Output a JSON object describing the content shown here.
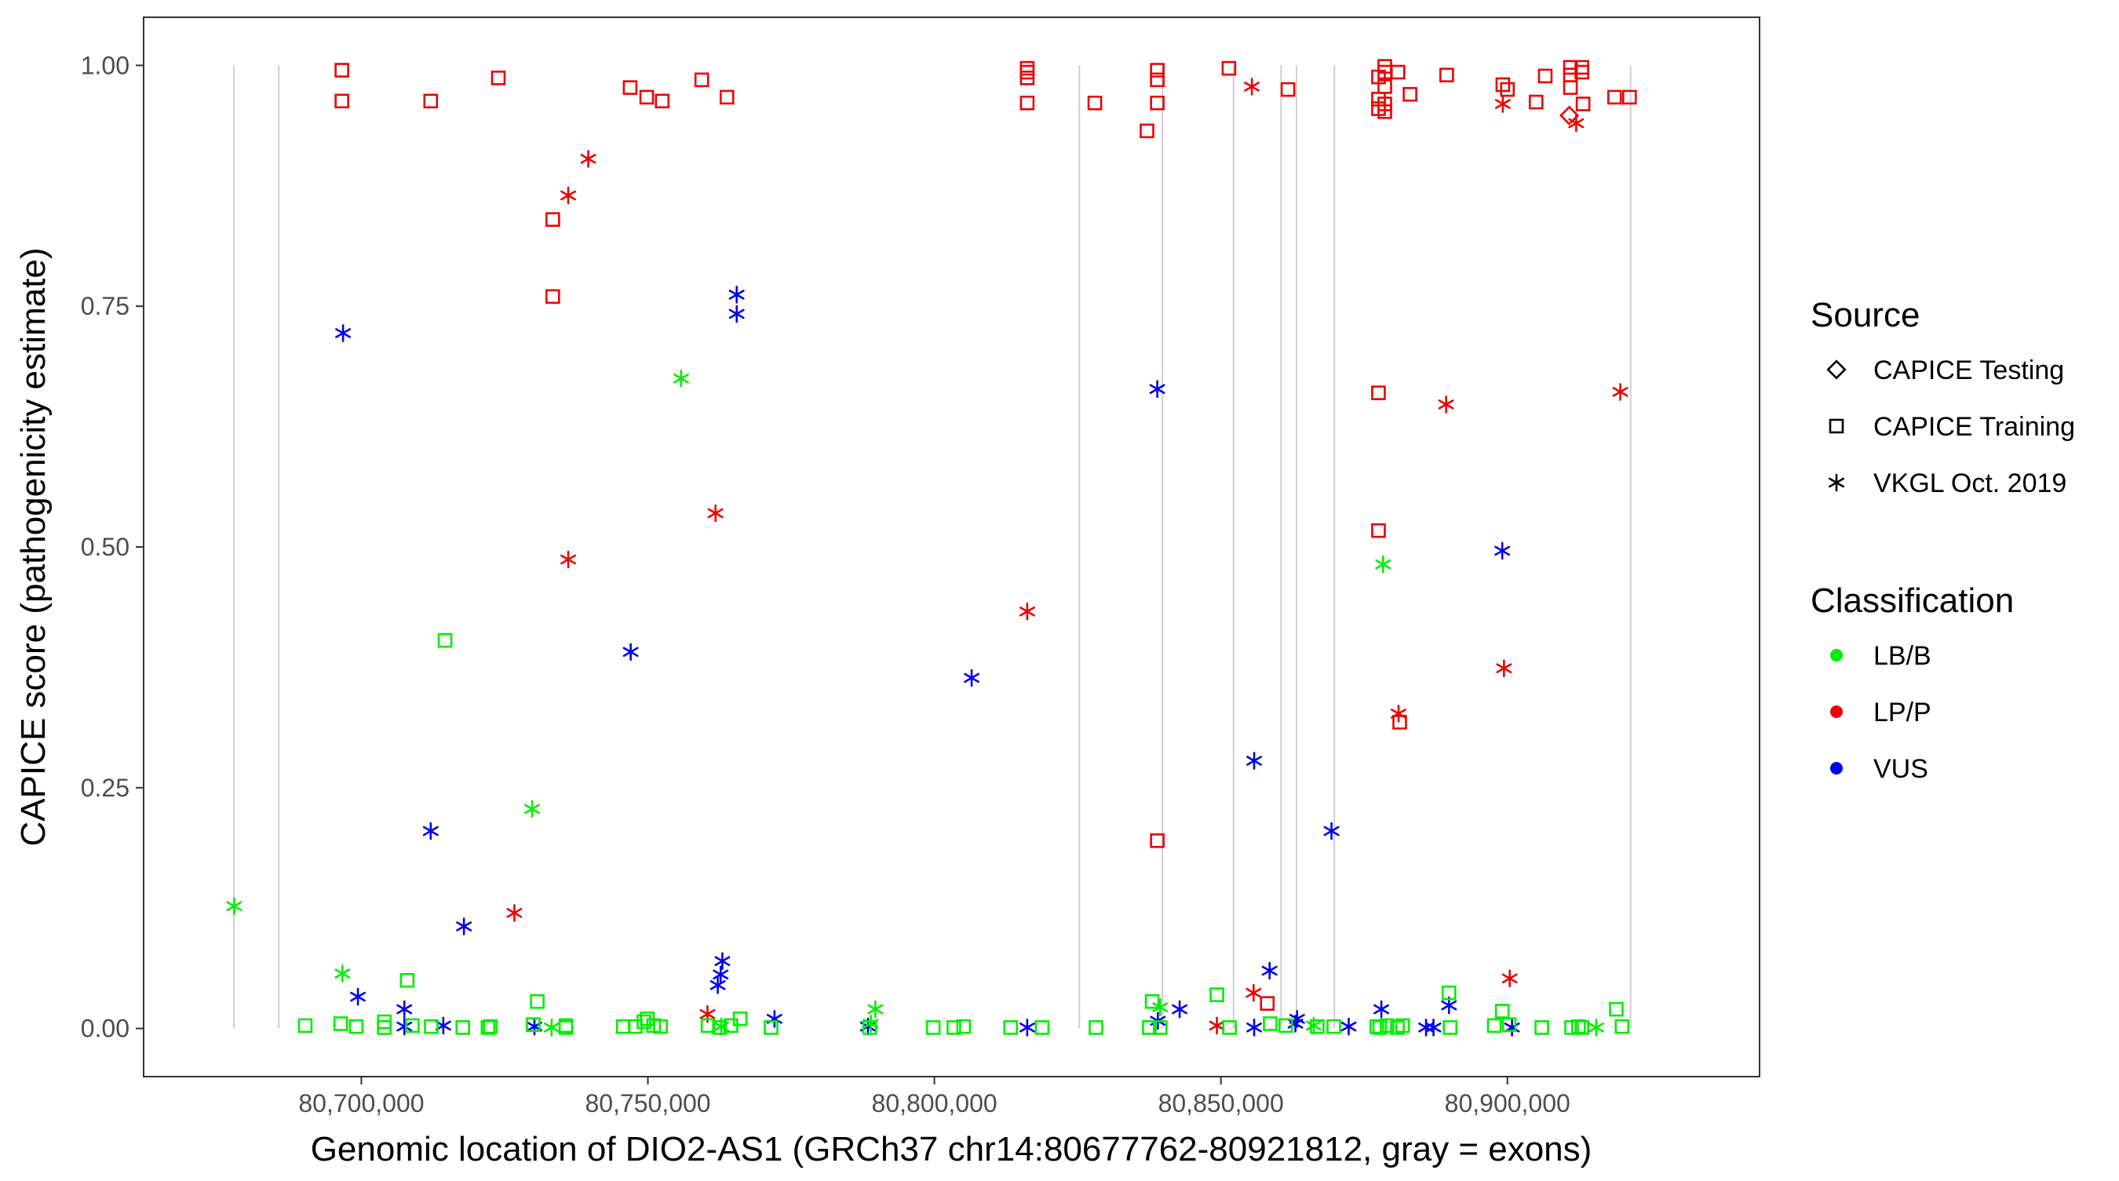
{
  "chart_data": {
    "type": "scatter",
    "xlabel": "Genomic location of DIO2-AS1 (GRCh37 chr14:80677762-80921812, gray = exons)",
    "ylabel": "CAPICE score (pathogenicity estimate)",
    "xlim": [
      80662000,
      80944000
    ],
    "ylim": [
      -0.05,
      1.05
    ],
    "x_ticks": [
      80700000,
      80750000,
      80800000,
      80850000,
      80900000
    ],
    "x_tick_labels": [
      "80,700,000",
      "80,750,000",
      "80,800,000",
      "80,850,000",
      "80,900,000"
    ],
    "y_ticks": [
      0,
      0.25,
      0.5,
      0.75,
      1
    ],
    "y_tick_labels": [
      "0.00",
      "0.25",
      "0.50",
      "0.75",
      "1.00"
    ],
    "grid": false,
    "exons": [
      80677762,
      80685600,
      80825300,
      80839800,
      80852200,
      80860500,
      80863200,
      80869800,
      80921500
    ],
    "legend_position": "right",
    "legends": [
      {
        "title": "Source",
        "items": [
          {
            "label": "CAPICE Testing",
            "shape": "diamond"
          },
          {
            "label": "CAPICE Training",
            "shape": "square"
          },
          {
            "label": "VKGL Oct. 2019",
            "shape": "asterisk"
          }
        ]
      },
      {
        "title": "Classification",
        "items": [
          {
            "label": "LB/B",
            "color": "#00ee00"
          },
          {
            "label": "LP/P",
            "color": "#ee0000"
          },
          {
            "label": "VUS",
            "color": "#0000ee"
          }
        ]
      }
    ],
    "colors": {
      "LB/B": "#00ee00",
      "LP/P": "#ee0000",
      "VUS": "#0000ee"
    },
    "series": [
      {
        "name": "LP/P",
        "source": "CAPICE Training",
        "points": [
          [
            80696600,
            0.995
          ],
          [
            80696600,
            0.963
          ],
          [
            80712100,
            0.963
          ],
          [
            80723900,
            0.987
          ],
          [
            80733400,
            0.84
          ],
          [
            80733400,
            0.76
          ],
          [
            80746900,
            0.977
          ],
          [
            80749800,
            0.967
          ],
          [
            80752500,
            0.963
          ],
          [
            80759400,
            0.985
          ],
          [
            80763800,
            0.967
          ],
          [
            80816200,
            0.997
          ],
          [
            80816200,
            0.993
          ],
          [
            80816200,
            0.987
          ],
          [
            80816200,
            0.961
          ],
          [
            80828000,
            0.961
          ],
          [
            80837100,
            0.932
          ],
          [
            80838900,
            0.995
          ],
          [
            80838900,
            0.985
          ],
          [
            80838900,
            0.961
          ],
          [
            80838900,
            0.195
          ],
          [
            80851400,
            0.997
          ],
          [
            80858100,
            0.026
          ],
          [
            80861700,
            0.975
          ],
          [
            80877500,
            0.988
          ],
          [
            80877500,
            0.965
          ],
          [
            80877500,
            0.955
          ],
          [
            80877500,
            0.66
          ],
          [
            80877500,
            0.517
          ],
          [
            80878600,
            0.999
          ],
          [
            80878600,
            0.993
          ],
          [
            80878600,
            0.978
          ],
          [
            80878600,
            0.96
          ],
          [
            80878600,
            0.952
          ],
          [
            80880900,
            0.993
          ],
          [
            80881200,
            0.318
          ],
          [
            80883000,
            0.97
          ],
          [
            80889400,
            0.99
          ],
          [
            80899200,
            0.98
          ],
          [
            80900000,
            0.975
          ],
          [
            80905000,
            0.962
          ],
          [
            80906600,
            0.989
          ],
          [
            80911000,
            0.998
          ],
          [
            80911000,
            0.99
          ],
          [
            80911000,
            0.977
          ],
          [
            80913000,
            0.998
          ],
          [
            80913000,
            0.993
          ],
          [
            80913200,
            0.96
          ],
          [
            80918700,
            0.967
          ],
          [
            80921300,
            0.967
          ]
        ]
      },
      {
        "name": "LP/P",
        "source": "VKGL Oct. 2019",
        "points": [
          [
            80726700,
            0.12
          ],
          [
            80736100,
            0.865
          ],
          [
            80736100,
            0.487
          ],
          [
            80739600,
            0.903
          ],
          [
            80760400,
            0.015
          ],
          [
            80761800,
            0.535
          ],
          [
            80816200,
            0.433
          ],
          [
            80849300,
            0.003
          ],
          [
            80855400,
            0.978
          ],
          [
            80855700,
            0.037
          ],
          [
            80881000,
            0.327
          ],
          [
            80889300,
            0.648
          ],
          [
            80899200,
            0.96
          ],
          [
            80899400,
            0.374
          ],
          [
            80900400,
            0.052
          ],
          [
            80912000,
            0.94
          ],
          [
            80919700,
            0.661
          ]
        ]
      },
      {
        "name": "LP/P",
        "source": "CAPICE Testing",
        "points": [
          [
            80910800,
            0.948
          ]
        ]
      },
      {
        "name": "VUS",
        "source": "VKGL Oct. 2019",
        "points": [
          [
            80696800,
            0.722
          ],
          [
            80699400,
            0.033
          ],
          [
            80707500,
            0.02
          ],
          [
            80707500,
            0.002
          ],
          [
            80712100,
            0.205
          ],
          [
            80714300,
            0.003
          ],
          [
            80717900,
            0.106
          ],
          [
            80730200,
            0.002
          ],
          [
            80747000,
            0.391
          ],
          [
            80762200,
            0.045
          ],
          [
            80762700,
            0.056
          ],
          [
            80763000,
            0.07
          ],
          [
            80765500,
            0.762
          ],
          [
            80765500,
            0.742
          ],
          [
            80772100,
            0.01
          ],
          [
            80788400,
            0.002
          ],
          [
            80806500,
            0.364
          ],
          [
            80816200,
            0.001
          ],
          [
            80838900,
            0.664
          ],
          [
            80839000,
            0.008
          ],
          [
            80842800,
            0.02
          ],
          [
            80855800,
            0.278
          ],
          [
            80855800,
            0.001
          ],
          [
            80858500,
            0.06
          ],
          [
            80863000,
            0.005
          ],
          [
            80863300,
            0.01
          ],
          [
            80869300,
            0.205
          ],
          [
            80872300,
            0.002
          ],
          [
            80878000,
            0.02
          ],
          [
            80885800,
            0.001
          ],
          [
            80887100,
            0.001
          ],
          [
            80889800,
            0.024
          ],
          [
            80899100,
            0.496
          ],
          [
            80900800,
            0.001
          ]
        ]
      },
      {
        "name": "LB/B",
        "source": "VKGL Oct. 2019",
        "points": [
          [
            80677800,
            0.127
          ],
          [
            80696700,
            0.057
          ],
          [
            80729800,
            0.228
          ],
          [
            80733200,
            0.001
          ],
          [
            80755800,
            0.675
          ],
          [
            80762800,
            0.002
          ],
          [
            80789700,
            0.02
          ],
          [
            80788900,
            0.005
          ],
          [
            80839400,
            0.022
          ],
          [
            80866200,
            0.003
          ],
          [
            80878300,
            0.482
          ],
          [
            80915500,
            0.001
          ]
        ]
      },
      {
        "name": "LB/B",
        "source": "CAPICE Training",
        "points": [
          [
            80690200,
            0.003
          ],
          [
            80696400,
            0.005
          ],
          [
            80699100,
            0.002
          ],
          [
            80704000,
            0.001
          ],
          [
            80704000,
            0.007
          ],
          [
            80708000,
            0.05
          ],
          [
            80708900,
            0.003
          ],
          [
            80712200,
            0.002
          ],
          [
            80714600,
            0.403
          ],
          [
            80717700,
            0.001
          ],
          [
            80722100,
            0.001
          ],
          [
            80722500,
            0.002
          ],
          [
            80730700,
            0.028
          ],
          [
            80730000,
            0.004
          ],
          [
            80735700,
            0.001
          ],
          [
            80735700,
            0.003
          ],
          [
            80745700,
            0.002
          ],
          [
            80747800,
            0.002
          ],
          [
            80749300,
            0.007
          ],
          [
            80749900,
            0.01
          ],
          [
            80751000,
            0.003
          ],
          [
            80752200,
            0.002
          ],
          [
            80760500,
            0.003
          ],
          [
            80762500,
            0.001
          ],
          [
            80764500,
            0.003
          ],
          [
            80766100,
            0.01
          ],
          [
            80771500,
            0.001
          ],
          [
            80788700,
            0.001
          ],
          [
            80799800,
            0.001
          ],
          [
            80803400,
            0.001
          ],
          [
            80805100,
            0.002
          ],
          [
            80813300,
            0.001
          ],
          [
            80818800,
            0.001
          ],
          [
            80828200,
            0.001
          ],
          [
            80837500,
            0.001
          ],
          [
            80838000,
            0.028
          ],
          [
            80839400,
            0.001
          ],
          [
            80849300,
            0.035
          ],
          [
            80851500,
            0.001
          ],
          [
            80858600,
            0.005
          ],
          [
            80861300,
            0.003
          ],
          [
            80866800,
            0.002
          ],
          [
            80869700,
            0.002
          ],
          [
            80877200,
            0.002
          ],
          [
            80877700,
            0.001
          ],
          [
            80879000,
            0.003
          ],
          [
            80880800,
            0.001
          ],
          [
            80881700,
            0.003
          ],
          [
            80889800,
            0.037
          ],
          [
            80890000,
            0.001
          ],
          [
            80897700,
            0.003
          ],
          [
            80899100,
            0.018
          ],
          [
            80900300,
            0.004
          ],
          [
            80906000,
            0.001
          ],
          [
            80911200,
            0.001
          ],
          [
            80912400,
            0.002
          ],
          [
            80913000,
            0.001
          ],
          [
            80919000,
            0.02
          ],
          [
            80920000,
            0.002
          ]
        ]
      }
    ]
  }
}
